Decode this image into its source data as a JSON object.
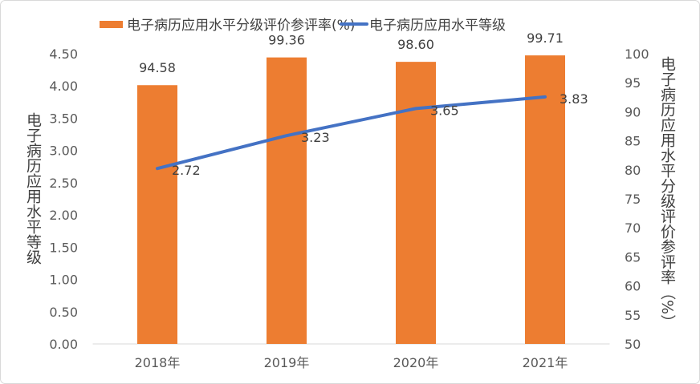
{
  "chart_data": {
    "type": "bar+line",
    "categories": [
      "2018年",
      "2019年",
      "2020年",
      "2021年"
    ],
    "series": [
      {
        "name": "电子病历应用水平分级评价参评率(%)",
        "type": "bar",
        "axis": "right",
        "values": [
          94.58,
          99.36,
          98.6,
          99.71
        ],
        "labels": [
          "94.58",
          "99.36",
          "98.60",
          "99.71"
        ],
        "color": "#ED7D31"
      },
      {
        "name": "电子病历应用水平等级",
        "type": "line",
        "axis": "left",
        "values": [
          2.72,
          3.23,
          3.65,
          3.83
        ],
        "labels": [
          "2.72",
          "3.23",
          "3.65",
          "3.83"
        ],
        "color": "#4472C4"
      }
    ],
    "left_axis": {
      "label": "电子病历应用水平等级",
      "ylim": [
        0,
        4.5
      ],
      "ticks": [
        "0.00",
        "0.50",
        "1.00",
        "1.50",
        "2.00",
        "2.50",
        "3.00",
        "3.50",
        "4.00",
        "4.50"
      ]
    },
    "right_axis": {
      "label": "电子病历应用水平分级评价参评率（%）",
      "ylim": [
        50,
        100
      ],
      "ticks": [
        "50",
        "55",
        "60",
        "65",
        "70",
        "75",
        "80",
        "85",
        "90",
        "95",
        "100"
      ]
    },
    "legend": "top",
    "grid": false
  }
}
